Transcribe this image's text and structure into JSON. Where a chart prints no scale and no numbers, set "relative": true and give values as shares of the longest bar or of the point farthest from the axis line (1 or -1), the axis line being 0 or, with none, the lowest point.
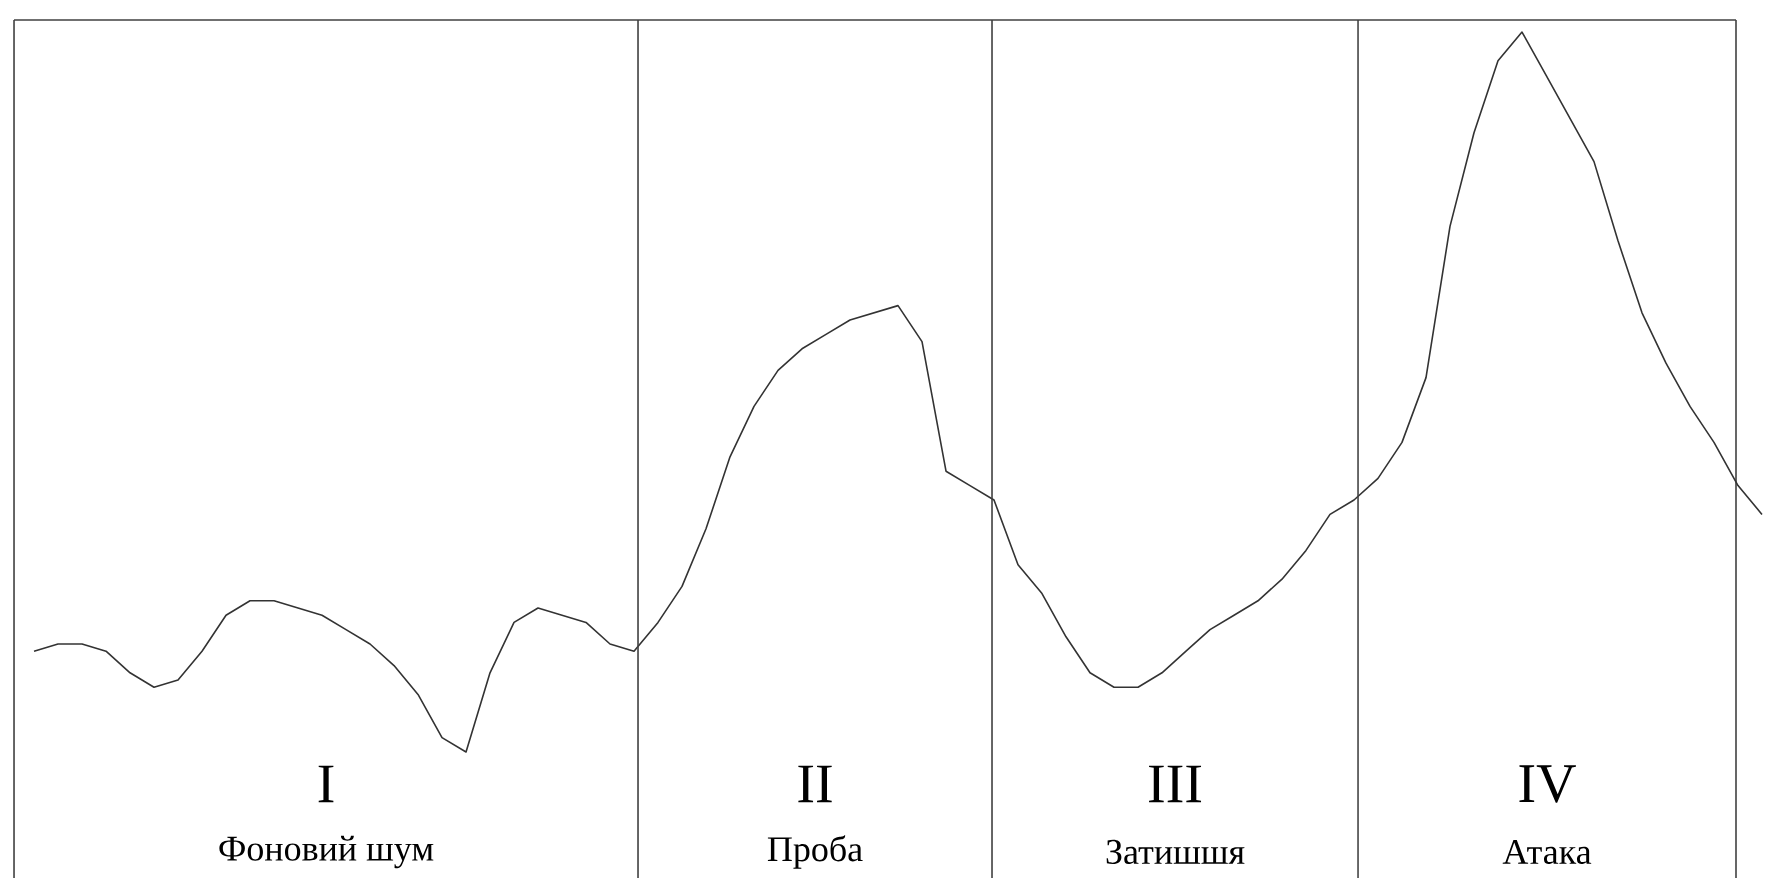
{
  "chart_data": {
    "type": "line",
    "relative": true,
    "grid": "x",
    "categories": [
      null,
      null,
      null,
      null,
      null,
      null,
      null,
      null,
      null,
      null,
      null,
      null,
      null,
      null,
      null,
      null,
      null,
      null,
      null,
      null,
      null,
      null,
      null,
      null,
      null,
      null,
      null,
      null,
      null,
      null,
      null,
      null,
      null,
      null,
      null,
      null,
      null,
      null,
      null,
      null,
      null,
      null,
      null,
      null,
      null,
      null,
      null,
      null,
      null,
      null,
      null,
      null,
      null,
      null,
      null,
      null,
      null,
      null,
      null,
      null,
      null,
      null,
      null,
      null,
      null,
      null,
      null,
      null,
      null,
      null,
      null,
      null,
      null
    ],
    "series": [
      {
        "color": "#333333",
        "values": [
          0.14,
          0.15,
          0.15,
          0.14,
          0.11,
          0.09,
          0.1,
          0.14,
          0.19,
          0.21,
          0.21,
          0.2,
          0.19,
          0.17,
          0.15,
          0.12,
          0.08,
          0.02,
          0,
          0.11,
          0.18,
          0.2,
          0.19,
          0.18,
          0.15,
          0.14,
          0.18,
          0.23,
          0.31,
          0.41,
          0.48,
          0.53,
          0.56,
          0.58,
          0.6,
          0.61,
          0.62,
          0.57,
          0.39,
          0.37,
          0.35,
          0.26,
          0.22,
          0.16,
          0.11,
          0.09,
          0.09,
          0.11,
          0.14,
          0.17,
          0.19,
          0.21,
          0.24,
          0.28,
          0.33,
          0.35,
          0.38,
          0.43,
          0.52,
          0.73,
          0.86,
          0.96,
          1,
          0.94,
          0.88,
          0.82,
          0.71,
          0.61,
          0.54,
          0.48,
          0.43,
          0.37,
          0.33
        ]
      }
    ],
    "annotations": [
      "I",
      "Фоновий шум",
      "II",
      "Проба",
      "III",
      "Затишшя",
      "IV",
      "Атака"
    ]
  }
}
